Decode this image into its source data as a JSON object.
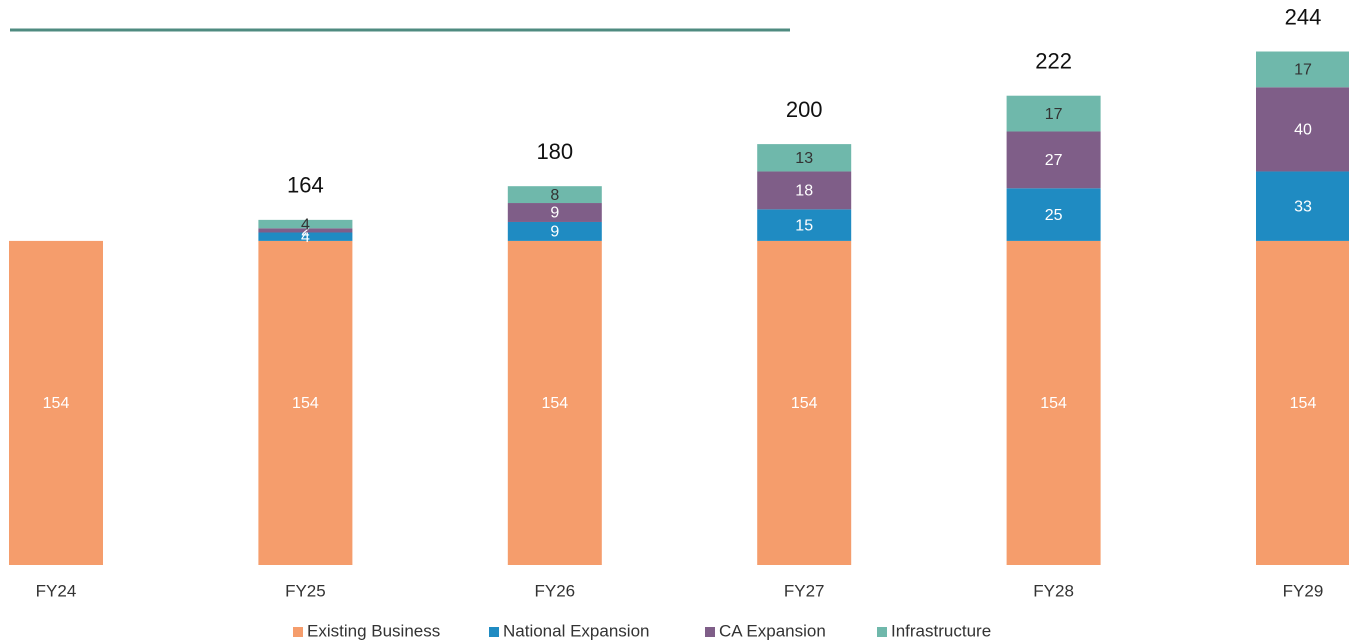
{
  "chart_data": {
    "type": "stacked_bar",
    "categories": [
      "FY24",
      "FY25",
      "FY26",
      "FY27",
      "FY28",
      "FY29"
    ],
    "series": [
      {
        "name": "Existing Business",
        "color": "#f59d6c",
        "values": [
          154,
          154,
          154,
          154,
          154,
          154
        ]
      },
      {
        "name": "National Expansion",
        "color": "#1f8bc2",
        "values": [
          null,
          4,
          9,
          15,
          25,
          33
        ]
      },
      {
        "name": "CA Expansion",
        "color": "#7f5e88",
        "values": [
          null,
          2,
          9,
          18,
          27,
          40
        ]
      },
      {
        "name": "Infrastructure",
        "color": "#6fb8ab",
        "values": [
          null,
          4,
          8,
          13,
          17,
          17
        ]
      }
    ],
    "totals": [
      null,
      164,
      180,
      200,
      222,
      244
    ],
    "ylim": [
      0,
      268
    ],
    "legend": "bottom"
  }
}
